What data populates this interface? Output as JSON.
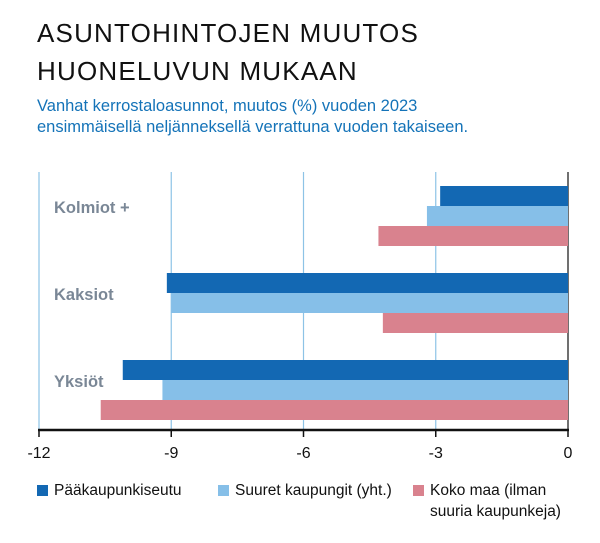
{
  "header": {
    "title_line1": "ASUNTOHINTOJEN MUUTOS",
    "title_line2": "HUONELUVUN MUKAAN",
    "subtitle_line1": "Vanhat kerrostaloasunnot, muutos (%) vuoden  2023",
    "subtitle_line2": "ensimmäisellä neljänneksellä verrattuna vuoden takaiseen."
  },
  "legend": {
    "item1": "Pääkaupunkiseutu",
    "item2": "Suuret kaupungit (yht.)",
    "item3_line1": "Koko maa (ilman",
    "item3_line2": "suuria kaupunkeja)"
  },
  "colors": {
    "series1": "#1368b3",
    "series2": "#86bfe8",
    "series3": "#d9828e",
    "gridline": "#8dc3e6",
    "category_label": "#7a8796",
    "axis": "#111111"
  },
  "chart_data": {
    "type": "bar",
    "orientation": "horizontal",
    "categories": [
      "Kolmiot +",
      "Kaksiot",
      "Yksiöt"
    ],
    "series": [
      {
        "name": "Pääkaupunkiseutu",
        "values": [
          -2.9,
          -9.1,
          -10.1
        ]
      },
      {
        "name": "Suuret kaupungit (yht.)",
        "values": [
          -3.2,
          -9.0,
          -9.2
        ]
      },
      {
        "name": "Koko maa (ilman suuria kaupunkeja)",
        "values": [
          -4.3,
          -4.2,
          -10.6
        ]
      }
    ],
    "xlim": [
      -12,
      0
    ],
    "xticks": [
      -12,
      -9,
      -6,
      -3,
      0
    ],
    "xtick_labels": [
      "-12",
      "-9",
      "-6",
      "-3",
      "0"
    ],
    "grid": "vertical",
    "legend_position": "bottom"
  }
}
